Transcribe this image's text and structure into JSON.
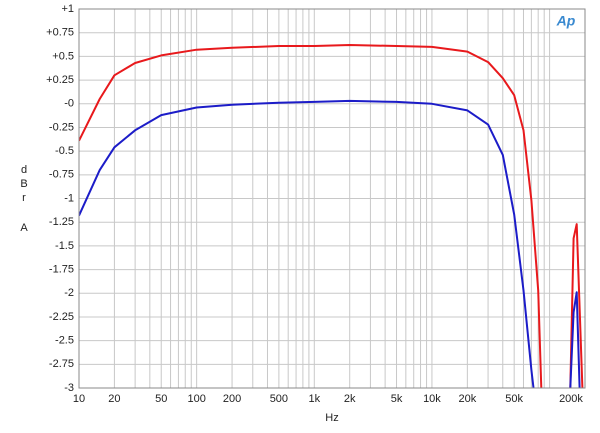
{
  "chart_data": {
    "type": "line",
    "logo": "Ap",
    "x_label": "Hz",
    "y_label": "dBr",
    "y_unit": "A",
    "xscale": "log",
    "xlim": [
      10,
      200000
    ],
    "ylim": [
      -3,
      1
    ],
    "grid": true,
    "xticks": [
      10,
      20,
      50,
      100,
      200,
      500,
      {
        "value": 1000,
        "label": "1k"
      },
      {
        "value": 2000,
        "label": "2k"
      },
      {
        "value": 5000,
        "label": "5k"
      },
      {
        "value": 10000,
        "label": "10k"
      },
      {
        "value": 20000,
        "label": "20k"
      },
      {
        "value": 50000,
        "label": "50k"
      },
      {
        "value": 200000,
        "label": "200k"
      }
    ],
    "xminor_ticks": [
      30,
      40,
      60,
      70,
      80,
      90,
      300,
      400,
      600,
      700,
      800,
      900,
      3000,
      4000,
      6000,
      7000,
      8000,
      9000,
      30000,
      40000,
      60000,
      70000,
      80000,
      90000,
      100000,
      300000
    ],
    "yticks": [
      {
        "value": 1,
        "label": "+1"
      },
      {
        "value": 0.75,
        "label": "+0.75"
      },
      {
        "value": 0.5,
        "label": "+0.5"
      },
      {
        "value": 0.25,
        "label": "+0.25"
      },
      {
        "value": 0,
        "label": "-0"
      },
      -0.25,
      -0.5,
      -0.75,
      -1,
      -1.25,
      -1.5,
      -1.75,
      -2,
      -2.25,
      -2.5,
      -2.75,
      -3
    ],
    "series": [
      {
        "color": "#e8191c",
        "x": [
          10,
          15,
          20,
          30,
          50,
          100,
          200,
          500,
          1000,
          2000,
          5000,
          10000,
          20000,
          30000,
          40000,
          50000,
          60000,
          70000,
          80000,
          85000,
          120000,
          150000,
          160000,
          170000,
          190000
        ],
        "values": [
          -0.39,
          0.05,
          0.3,
          0.43,
          0.51,
          0.57,
          0.59,
          0.61,
          0.61,
          0.62,
          0.61,
          0.6,
          0.55,
          0.44,
          0.27,
          0.09,
          -0.28,
          -1.02,
          -1.97,
          -3,
          null,
          -3,
          -1.42,
          -1.27,
          -3
        ]
      },
      {
        "color": "#1c1cc8",
        "x": [
          10,
          15,
          20,
          30,
          50,
          100,
          200,
          500,
          1000,
          2000,
          5000,
          10000,
          20000,
          30000,
          40000,
          50000,
          60000,
          70000,
          73000,
          120000,
          150000,
          160000,
          170000,
          180000
        ],
        "values": [
          -1.18,
          -0.7,
          -0.46,
          -0.28,
          -0.12,
          -0.04,
          -0.01,
          0.01,
          0.02,
          0.03,
          0.02,
          0,
          -0.07,
          -0.22,
          -0.54,
          -1.17,
          -1.97,
          -2.81,
          -3,
          null,
          -3,
          -2.2,
          -1.99,
          -3
        ]
      }
    ]
  }
}
